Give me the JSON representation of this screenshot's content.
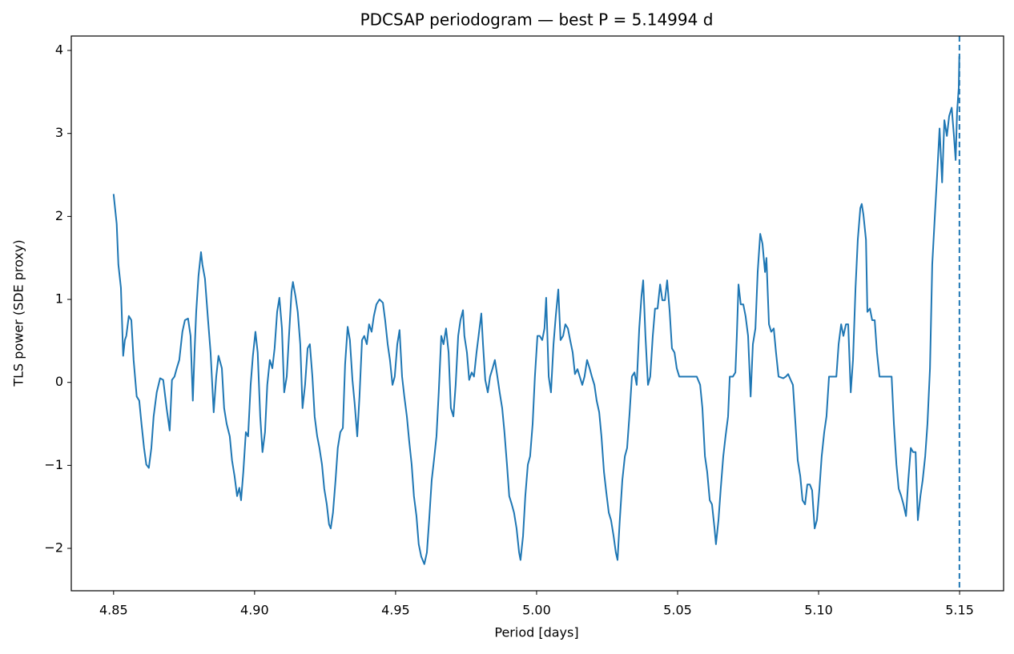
{
  "chart_data": {
    "type": "line",
    "title": "PDCSAP periodogram — best P = 5.14994 d",
    "xlabel": "Period [days]",
    "ylabel": "TLS power (SDE proxy)",
    "xlim": [
      4.835,
      5.1656
    ],
    "ylim": [
      -2.511,
      4.174
    ],
    "xticks": [
      4.85,
      {
        "value": 4.9,
        "label": "4.90"
      },
      4.95,
      {
        "value": 5.0,
        "label": "5.00"
      },
      5.05,
      {
        "value": 5.1,
        "label": "5.10"
      },
      5.15
    ],
    "yticks": [
      {
        "value": -2,
        "label": "−2"
      },
      {
        "value": -1,
        "label": "−1"
      },
      0,
      1,
      2,
      3,
      4
    ],
    "grid": false,
    "vlines": [
      {
        "x": 5.14994,
        "color": "#1f77b4",
        "style": "dashed"
      }
    ],
    "x": [
      4.85,
      4.8511,
      4.8517,
      4.8526,
      4.8534,
      4.854,
      4.8545,
      4.8554,
      4.8563,
      4.8571,
      4.8582,
      4.8591,
      4.8599,
      4.8608,
      4.8616,
      4.8625,
      4.8634,
      4.8642,
      4.8653,
      4.8665,
      4.8676,
      4.8688,
      4.8699,
      4.8707,
      4.8716,
      4.8724,
      4.8733,
      4.8744,
      4.8753,
      4.8764,
      4.8773,
      4.8781,
      4.8787,
      4.8793,
      4.8801,
      4.881,
      4.8815,
      4.8824,
      4.8835,
      4.8844,
      4.8855,
      4.8864,
      4.8872,
      4.8884,
      4.8892,
      4.8901,
      4.8912,
      4.892,
      4.8929,
      4.8938,
      4.8946,
      4.8952,
      4.896,
      4.8969,
      4.8977,
      4.8986,
      4.8994,
      4.9003,
      4.9011,
      4.902,
      4.9028,
      4.9037,
      4.9045,
      4.9054,
      4.9063,
      4.9071,
      4.908,
      4.9088,
      4.9097,
      4.9105,
      4.9114,
      4.9122,
      4.9131,
      4.9136,
      4.9145,
      4.9153,
      4.9162,
      4.917,
      4.9179,
      4.9188,
      4.9196,
      4.9205,
      4.9213,
      4.9222,
      4.923,
      4.9239,
      4.9247,
      4.9256,
      4.9264,
      4.927,
      4.9278,
      4.9287,
      4.9295,
      4.9304,
      4.9313,
      4.9321,
      4.933,
      4.9338,
      4.9347,
      4.9355,
      4.9364,
      4.9372,
      4.9381,
      4.9389,
      4.9398,
      4.9406,
      4.9415,
      4.9423,
      4.9432,
      4.9443,
      4.9455,
      4.9463,
      4.9472,
      4.948,
      4.9489,
      4.9497,
      4.9506,
      4.9514,
      4.9523,
      4.9531,
      4.954,
      4.9548,
      4.9557,
      4.9565,
      4.9574,
      4.9582,
      4.9591,
      4.9602,
      4.9611,
      4.9619,
      4.9628,
      4.9636,
      4.9645,
      4.9653,
      4.9662,
      4.967,
      4.9679,
      4.9688,
      4.9696,
      4.9705,
      4.9713,
      4.9722,
      4.973,
      4.9739,
      4.9744,
      4.9753,
      4.9761,
      4.977,
      4.9778,
      4.9787,
      4.9795,
      4.9804,
      4.981,
      4.9818,
      4.9827,
      4.9835,
      4.9844,
      4.9852,
      4.9861,
      4.9869,
      4.9878,
      4.9886,
      4.9895,
      4.9903,
      4.9912,
      4.992,
      4.9929,
      4.9938,
      4.9943,
      4.9952,
      4.996,
      4.9969,
      4.9977,
      4.9986,
      4.9994,
      5.0003,
      5.0011,
      5.002,
      5.0028,
      5.0034,
      5.0043,
      5.0051,
      5.006,
      5.0068,
      5.0077,
      5.0085,
      5.0094,
      5.0102,
      5.0111,
      5.0119,
      5.0128,
      5.0136,
      5.0145,
      5.0153,
      5.0162,
      5.017,
      5.0179,
      5.0188,
      5.0196,
      5.0205,
      5.0213,
      5.0222,
      5.023,
      5.0239,
      5.0247,
      5.0256,
      5.0264,
      5.0273,
      5.0281,
      5.0287,
      5.0295,
      5.0304,
      5.0313,
      5.0321,
      5.033,
      5.0338,
      5.0347,
      5.0355,
      5.0364,
      5.0372,
      5.0378,
      5.0386,
      5.0395,
      5.0403,
      5.0412,
      5.042,
      5.0429,
      5.0438,
      5.0446,
      5.0455,
      5.0463,
      5.0472,
      5.048,
      5.0489,
      5.0497,
      5.0506,
      5.0514,
      5.054,
      5.0568,
      5.058,
      5.0588,
      5.0597,
      5.0605,
      5.0614,
      5.0622,
      5.0631,
      5.0636,
      5.0645,
      5.0653,
      5.0662,
      5.067,
      5.0679,
      5.0685,
      5.0696,
      5.0705,
      5.071,
      5.0716,
      5.0724,
      5.0733,
      5.0741,
      5.075,
      5.0759,
      5.0767,
      5.0776,
      5.0784,
      5.0793,
      5.0801,
      5.081,
      5.0815,
      5.0824,
      5.0832,
      5.0841,
      5.0849,
      5.0858,
      5.0875,
      5.0884,
      5.0892,
      5.0901,
      5.0909,
      5.0918,
      5.0926,
      5.0935,
      5.0943,
      5.0952,
      5.096,
      5.0969,
      5.0977,
      5.0986,
      5.0994,
      5.1003,
      5.1011,
      5.102,
      5.1028,
      5.1037,
      5.1051,
      5.1063,
      5.1071,
      5.108,
      5.1088,
      5.1097,
      5.1105,
      5.1114,
      5.1122,
      5.1131,
      5.1139,
      5.1148,
      5.1153,
      5.1159,
      5.1168,
      5.1173,
      5.1182,
      5.119,
      5.1199,
      5.1207,
      5.1216,
      5.1244,
      5.1259,
      5.1267,
      5.1276,
      5.1284,
      5.1293,
      5.1301,
      5.131,
      5.1318,
      5.1327,
      5.1335,
      5.1344,
      5.1352,
      5.1361,
      5.1369,
      5.1378,
      5.1386,
      5.1395,
      5.1403,
      5.1412,
      5.142,
      5.1429,
      5.1438,
      5.1446,
      5.1455,
      5.1463,
      5.1472,
      5.148,
      5.1486,
      5.1491,
      5.1497,
      5.1499
    ],
    "series": [
      {
        "name": "PDCSAP",
        "color": "#1f77b4",
        "values": [
          2.27,
          1.91,
          1.42,
          1.14,
          0.32,
          0.51,
          0.56,
          0.8,
          0.75,
          0.27,
          -0.17,
          -0.22,
          -0.5,
          -0.79,
          -0.99,
          -1.03,
          -0.79,
          -0.41,
          -0.12,
          0.05,
          0.03,
          -0.31,
          -0.58,
          0.03,
          0.07,
          0.17,
          0.27,
          0.61,
          0.75,
          0.77,
          0.56,
          -0.22,
          0.36,
          0.85,
          1.28,
          1.57,
          1.42,
          1.25,
          0.75,
          0.36,
          -0.36,
          0.07,
          0.32,
          0.17,
          -0.31,
          -0.5,
          -0.65,
          -0.94,
          -1.13,
          -1.37,
          -1.27,
          -1.42,
          -1.08,
          -0.6,
          -0.65,
          -0.03,
          0.32,
          0.61,
          0.36,
          -0.41,
          -0.84,
          -0.6,
          -0.03,
          0.27,
          0.17,
          0.41,
          0.85,
          1.02,
          0.65,
          -0.12,
          0.07,
          0.56,
          1.09,
          1.21,
          1.04,
          0.85,
          0.46,
          -0.31,
          -0.03,
          0.41,
          0.46,
          0.07,
          -0.41,
          -0.65,
          -0.79,
          -0.99,
          -1.28,
          -1.47,
          -1.71,
          -1.76,
          -1.57,
          -1.18,
          -0.79,
          -0.6,
          -0.55,
          0.22,
          0.67,
          0.51,
          0.03,
          -0.26,
          -0.65,
          -0.17,
          0.51,
          0.56,
          0.46,
          0.7,
          0.61,
          0.8,
          0.94,
          1.0,
          0.96,
          0.75,
          0.46,
          0.27,
          -0.03,
          0.07,
          0.46,
          0.63,
          0.07,
          -0.17,
          -0.41,
          -0.7,
          -0.99,
          -1.37,
          -1.61,
          -1.95,
          -2.1,
          -2.19,
          -2.05,
          -1.66,
          -1.18,
          -0.94,
          -0.65,
          -0.12,
          0.56,
          0.46,
          0.65,
          0.36,
          -0.31,
          -0.41,
          -0.03,
          0.56,
          0.75,
          0.87,
          0.56,
          0.36,
          0.03,
          0.12,
          0.07,
          0.36,
          0.58,
          0.83,
          0.46,
          0.03,
          -0.12,
          0.07,
          0.17,
          0.27,
          0.07,
          -0.12,
          -0.31,
          -0.6,
          -0.99,
          -1.37,
          -1.47,
          -1.57,
          -1.76,
          -2.05,
          -2.14,
          -1.85,
          -1.37,
          -0.99,
          -0.89,
          -0.5,
          0.07,
          0.56,
          0.56,
          0.51,
          0.65,
          1.02,
          0.07,
          -0.12,
          0.46,
          0.8,
          1.12,
          0.51,
          0.56,
          0.7,
          0.65,
          0.51,
          0.36,
          0.1,
          0.16,
          0.07,
          -0.03,
          0.07,
          0.27,
          0.17,
          0.07,
          -0.03,
          -0.22,
          -0.36,
          -0.65,
          -1.08,
          -1.32,
          -1.57,
          -1.66,
          -1.85,
          -2.05,
          -2.14,
          -1.66,
          -1.18,
          -0.89,
          -0.79,
          -0.36,
          0.07,
          0.12,
          -0.03,
          0.65,
          1.04,
          1.23,
          0.56,
          -0.03,
          0.07,
          0.56,
          0.89,
          0.89,
          1.18,
          0.99,
          0.99,
          1.23,
          0.85,
          0.41,
          0.36,
          0.17,
          0.07,
          0.07,
          0.07,
          0.07,
          -0.03,
          -0.31,
          -0.89,
          -1.08,
          -1.42,
          -1.47,
          -1.76,
          -1.95,
          -1.66,
          -1.28,
          -0.89,
          -0.65,
          -0.41,
          0.07,
          0.07,
          0.12,
          0.56,
          1.18,
          0.94,
          0.94,
          0.8,
          0.56,
          -0.17,
          0.46,
          0.65,
          1.33,
          1.79,
          1.67,
          1.33,
          1.5,
          0.7,
          0.61,
          0.65,
          0.36,
          0.07,
          0.05,
          0.07,
          0.1,
          0.03,
          -0.03,
          -0.5,
          -0.94,
          -1.13,
          -1.42,
          -1.47,
          -1.23,
          -1.23,
          -1.3,
          -1.76,
          -1.66,
          -1.28,
          -0.89,
          -0.6,
          -0.41,
          0.07,
          0.07,
          0.07,
          0.46,
          0.7,
          0.56,
          0.7,
          0.7,
          -0.12,
          0.27,
          1.14,
          1.72,
          2.1,
          2.15,
          2.02,
          1.72,
          0.85,
          0.89,
          0.75,
          0.75,
          0.36,
          0.07,
          0.07,
          0.07,
          -0.5,
          -0.99,
          -1.28,
          -1.37,
          -1.47,
          -1.61,
          -1.18,
          -0.79,
          -0.84,
          -0.84,
          -1.66,
          -1.37,
          -1.18,
          -0.89,
          -0.5,
          0.17,
          1.42,
          1.99,
          2.48,
          3.06,
          2.41,
          3.16,
          2.97,
          3.21,
          3.31,
          2.97,
          2.68,
          3.26,
          3.55,
          3.93
        ]
      }
    ]
  }
}
